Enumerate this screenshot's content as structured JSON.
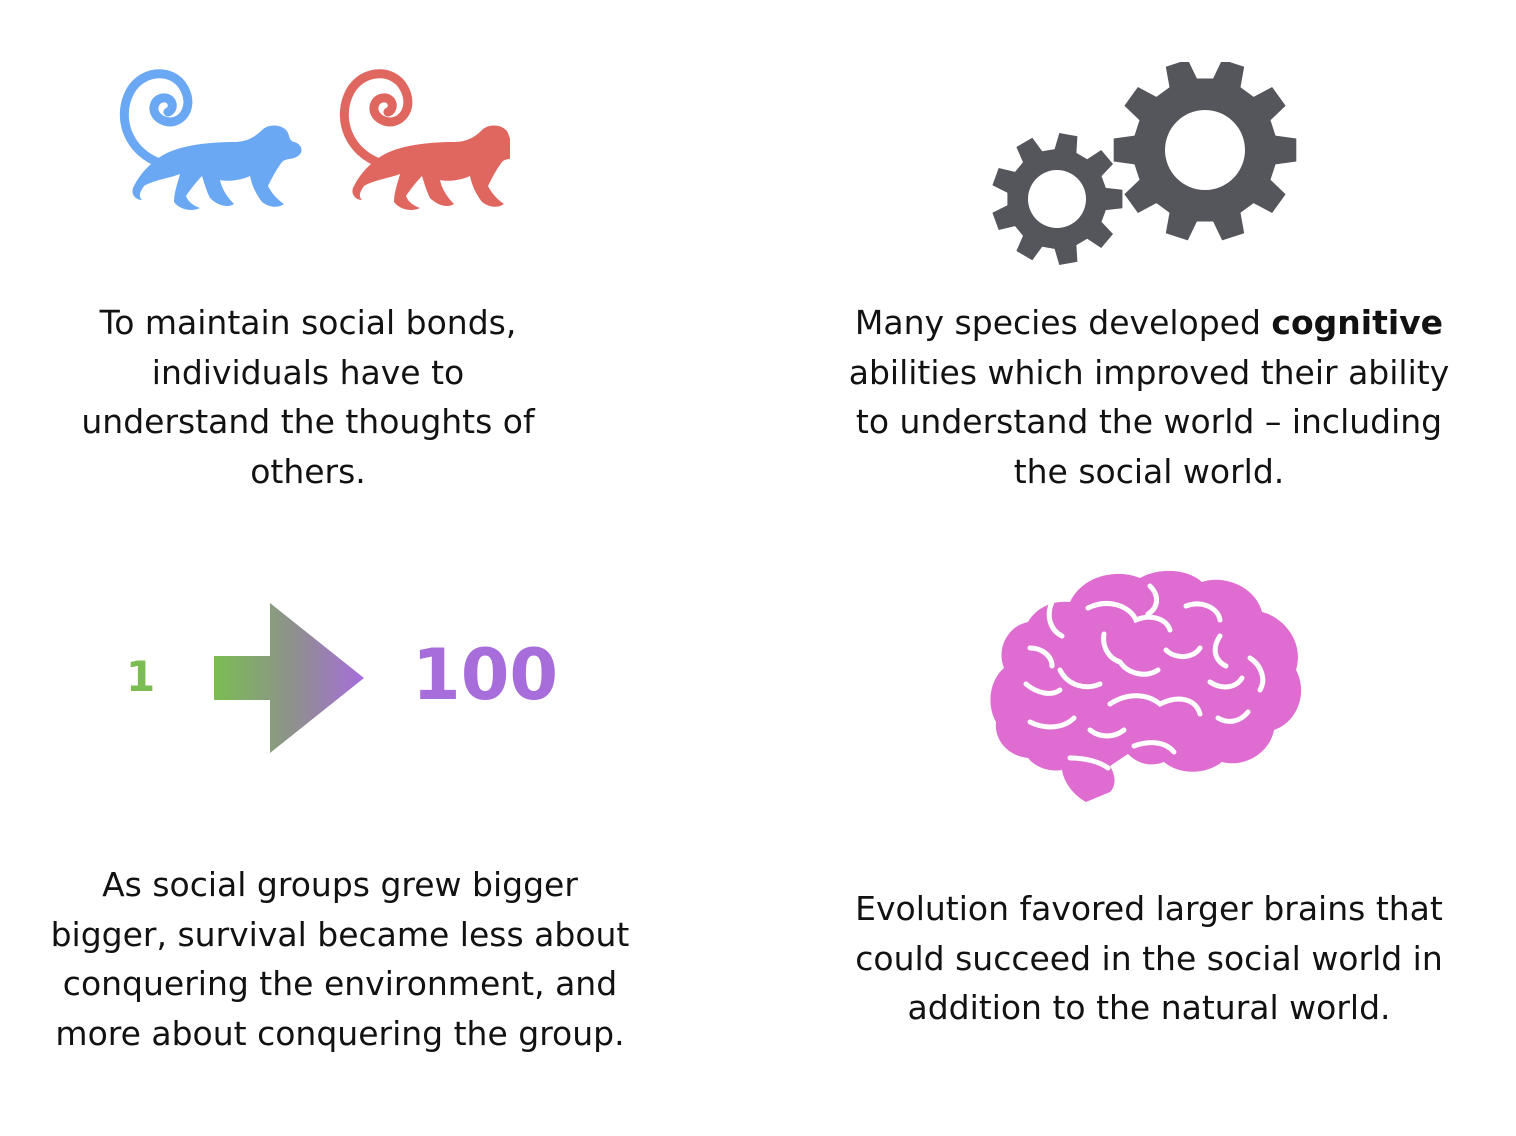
{
  "panels": {
    "social_bonds": {
      "caption": "To maintain social bonds, individuals have to understand the thoughts of others.",
      "icons": [
        "monkey-icon",
        "monkey-icon"
      ],
      "colors": {
        "monkey_left": "#6aa8f3",
        "monkey_right": "#e0675f"
      }
    },
    "cognitive": {
      "caption_before": "Many species developed ",
      "caption_bold": "cognitive",
      "caption_after": " abilities which improved their ability to understand the world – including the social world.",
      "icons": [
        "gears-icon"
      ],
      "colors": {
        "gears": "#54565b"
      }
    },
    "group_size": {
      "from_number": "1",
      "to_number": "100",
      "caption": "As social groups grew bigger bigger, survival became less about conquering the environment, and more about conquering the group.",
      "icons": [
        "arrow-right-icon"
      ],
      "colors": {
        "from": "#7bbd52",
        "to": "#a76ddb"
      }
    },
    "evolution": {
      "caption": "Evolution favored larger brains that could succeed in the social world in addition to the natural world.",
      "icons": [
        "brain-icon"
      ],
      "colors": {
        "brain": "#df6dd1"
      }
    }
  }
}
